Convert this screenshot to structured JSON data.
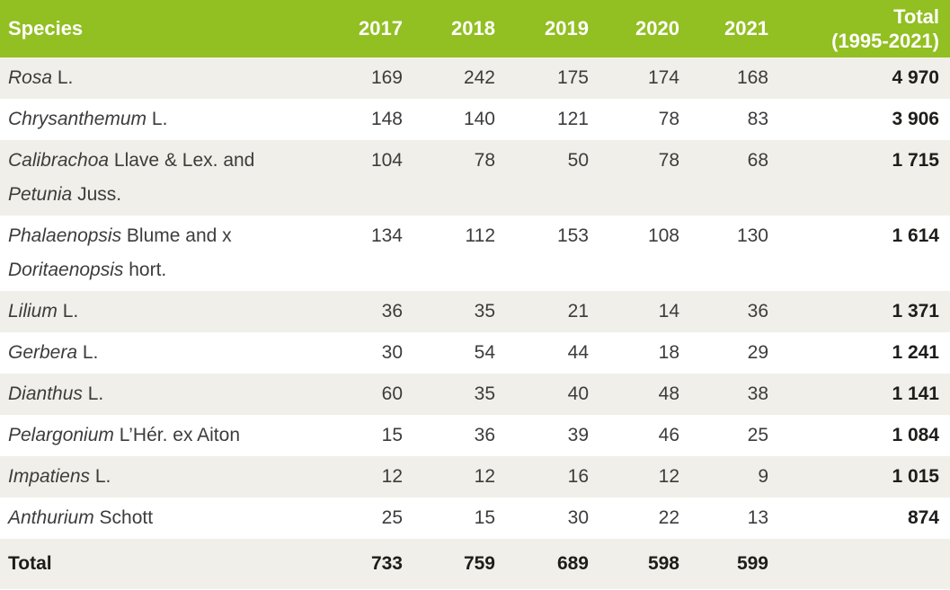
{
  "table": {
    "accent_green": "#92bf21",
    "row_alt_bg": "#f0efe9",
    "header": {
      "species_label": "Species",
      "years": [
        "2017",
        "2018",
        "2019",
        "2020",
        "2021"
      ],
      "total_line1": "Total",
      "total_line2": "(1995-2021)"
    },
    "rows": [
      {
        "species": [
          {
            "i": true,
            "t": "Rosa"
          },
          {
            "t": " L."
          }
        ],
        "values": [
          "169",
          "242",
          "175",
          "174",
          "168"
        ],
        "total": "4 970"
      },
      {
        "species": [
          {
            "i": true,
            "t": "Chrysanthemum"
          },
          {
            "t": " L."
          }
        ],
        "values": [
          "148",
          "140",
          "121",
          "78",
          "83"
        ],
        "total": "3 906"
      },
      {
        "species": [
          {
            "i": true,
            "t": "Calibrachoa"
          },
          {
            "t": " Llave & Lex. and"
          },
          {
            "br": true
          },
          {
            "i": true,
            "t": "Petunia"
          },
          {
            "t": " Juss."
          }
        ],
        "values": [
          "104",
          "78",
          "50",
          "78",
          "68"
        ],
        "total": "1 715"
      },
      {
        "species": [
          {
            "i": true,
            "t": "Phalaenopsis"
          },
          {
            "t": " Blume and x"
          },
          {
            "br": true
          },
          {
            "i": true,
            "t": "Doritaenopsis"
          },
          {
            "t": " hort."
          }
        ],
        "values": [
          "134",
          "112",
          "153",
          "108",
          "130"
        ],
        "total": "1 614"
      },
      {
        "species": [
          {
            "i": true,
            "t": "Lilium"
          },
          {
            "t": " L."
          }
        ],
        "values": [
          "36",
          "35",
          "21",
          "14",
          "36"
        ],
        "total": "1 371"
      },
      {
        "species": [
          {
            "i": true,
            "t": "Gerbera"
          },
          {
            "t": " L."
          }
        ],
        "values": [
          "30",
          "54",
          "44",
          "18",
          "29"
        ],
        "total": "1 241"
      },
      {
        "species": [
          {
            "i": true,
            "t": "Dianthus"
          },
          {
            "t": " L."
          }
        ],
        "values": [
          "60",
          "35",
          "40",
          "48",
          "38"
        ],
        "total": "1 141"
      },
      {
        "species": [
          {
            "i": true,
            "t": "Pelargonium"
          },
          {
            "t": " L’Hér. ex Aiton"
          }
        ],
        "values": [
          "15",
          "36",
          "39",
          "46",
          "25"
        ],
        "total": "1 084"
      },
      {
        "species": [
          {
            "i": true,
            "t": "Impatiens"
          },
          {
            "t": " L."
          }
        ],
        "values": [
          "12",
          "12",
          "16",
          "12",
          "9"
        ],
        "total": "1 015"
      },
      {
        "species": [
          {
            "i": true,
            "t": "Anthurium"
          },
          {
            "t": " Schott"
          }
        ],
        "values": [
          "25",
          "15",
          "30",
          "22",
          "13"
        ],
        "total": "874"
      }
    ],
    "footer": {
      "label": "Total",
      "values": [
        "733",
        "759",
        "689",
        "598",
        "599"
      ],
      "total": ""
    }
  },
  "chart_data": {
    "type": "table",
    "title": "",
    "columns": [
      "Species",
      "2017",
      "2018",
      "2019",
      "2020",
      "2021",
      "Total (1995-2021)"
    ],
    "rows": [
      [
        "Rosa L.",
        169,
        242,
        175,
        174,
        168,
        4970
      ],
      [
        "Chrysanthemum L.",
        148,
        140,
        121,
        78,
        83,
        3906
      ],
      [
        "Calibrachoa Llave & Lex. and Petunia Juss.",
        104,
        78,
        50,
        78,
        68,
        1715
      ],
      [
        "Phalaenopsis Blume and x Doritaenopsis hort.",
        134,
        112,
        153,
        108,
        130,
        1614
      ],
      [
        "Lilium L.",
        36,
        35,
        21,
        14,
        36,
        1371
      ],
      [
        "Gerbera L.",
        30,
        54,
        44,
        18,
        29,
        1241
      ],
      [
        "Dianthus L.",
        60,
        35,
        40,
        48,
        38,
        1141
      ],
      [
        "Pelargonium L’Hér. ex Aiton",
        15,
        36,
        39,
        46,
        25,
        1084
      ],
      [
        "Impatiens L.",
        12,
        12,
        16,
        12,
        9,
        1015
      ],
      [
        "Anthurium Schott",
        25,
        15,
        30,
        22,
        13,
        874
      ],
      [
        "Total",
        733,
        759,
        689,
        598,
        599,
        null
      ]
    ]
  }
}
